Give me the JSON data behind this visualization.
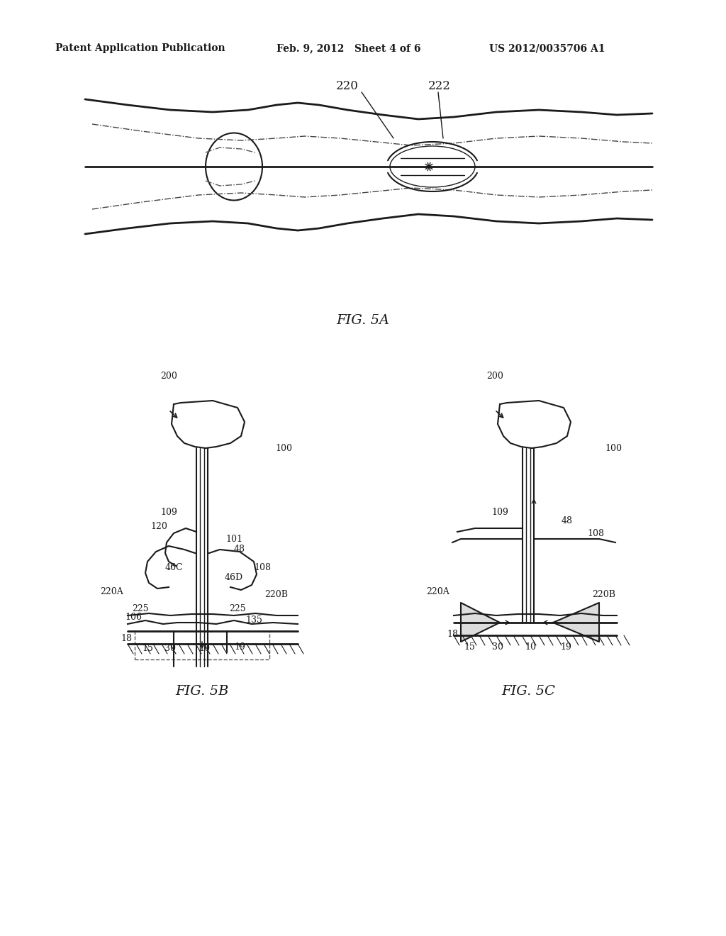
{
  "bg_color": "#ffffff",
  "line_color": "#1a1a1a",
  "header_left": "Patent Application Publication",
  "header_mid": "Feb. 9, 2012   Sheet 4 of 6",
  "header_right": "US 2012/0035706 A1",
  "fig5a_label": "FIG. 5A",
  "fig5b_label": "FIG. 5B",
  "fig5c_label": "FIG. 5C"
}
